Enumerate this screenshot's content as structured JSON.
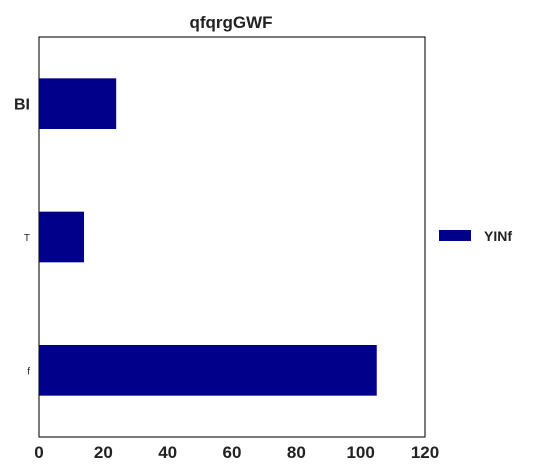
{
  "chart_data": {
    "type": "bar",
    "orientation": "horizontal",
    "title": "qfqrgGWF",
    "xlabel": "",
    "ylabel": "",
    "categories": [
      "BI",
      "T",
      "f"
    ],
    "category_label_styles": [
      "large-bold",
      "small",
      "small"
    ],
    "series": [
      {
        "name": "YINf",
        "values": [
          24,
          14,
          105
        ],
        "color": "#00008b"
      }
    ],
    "xlim": [
      0,
      120
    ],
    "xticks": [
      0,
      20,
      40,
      60,
      80,
      100,
      120
    ],
    "grid": false,
    "legend_position": "right"
  }
}
